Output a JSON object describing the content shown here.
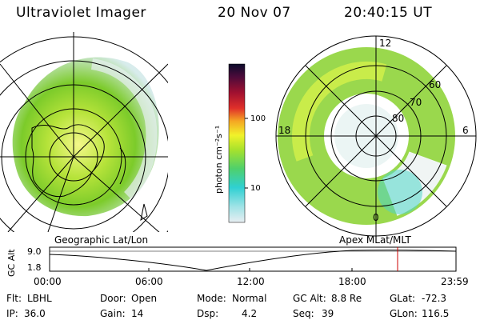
{
  "header": {
    "title": "Ultraviolet Imager",
    "date": "20 Nov 07",
    "time": "20:40:15 UT"
  },
  "left_panel": {
    "caption": "Geographic Lat/Lon"
  },
  "right_panel": {
    "caption": "Apex  MLat/MLT",
    "mlt_labels": {
      "top": "12",
      "left": "18",
      "right": "6",
      "bottom": "0"
    },
    "lat_labels": [
      "60",
      "70",
      "80"
    ]
  },
  "colorbar": {
    "unit": "photon cm⁻²s⁻¹",
    "ticks": [
      "100",
      "10"
    ],
    "scale": "log"
  },
  "altitude_plot": {
    "ylabel": "GC Alt",
    "y_ticks": [
      "9.0",
      "1.8"
    ],
    "x_ticks": [
      "00:00",
      "06:00",
      "12:00",
      "18:00",
      "23:59"
    ],
    "current_marker_color": "#cc0000"
  },
  "footer": {
    "row1": [
      {
        "label": "Flt:",
        "value": "LBHL"
      },
      {
        "label": "Door:",
        "value": "Open"
      },
      {
        "label": "Mode:",
        "value": "Normal"
      },
      {
        "label": "GC Alt:",
        "value": "8.8 Re"
      },
      {
        "label": "GLat:",
        "value": "-72.3"
      }
    ],
    "row2": [
      {
        "label": "IP:",
        "value": "36.0"
      },
      {
        "label": "Gain:",
        "value": "14"
      },
      {
        "label": "Dsp:",
        "value": "4.2"
      },
      {
        "label": "Seq:",
        "value": "39"
      },
      {
        "label": "GLon:",
        "value": "116.5"
      }
    ]
  }
}
